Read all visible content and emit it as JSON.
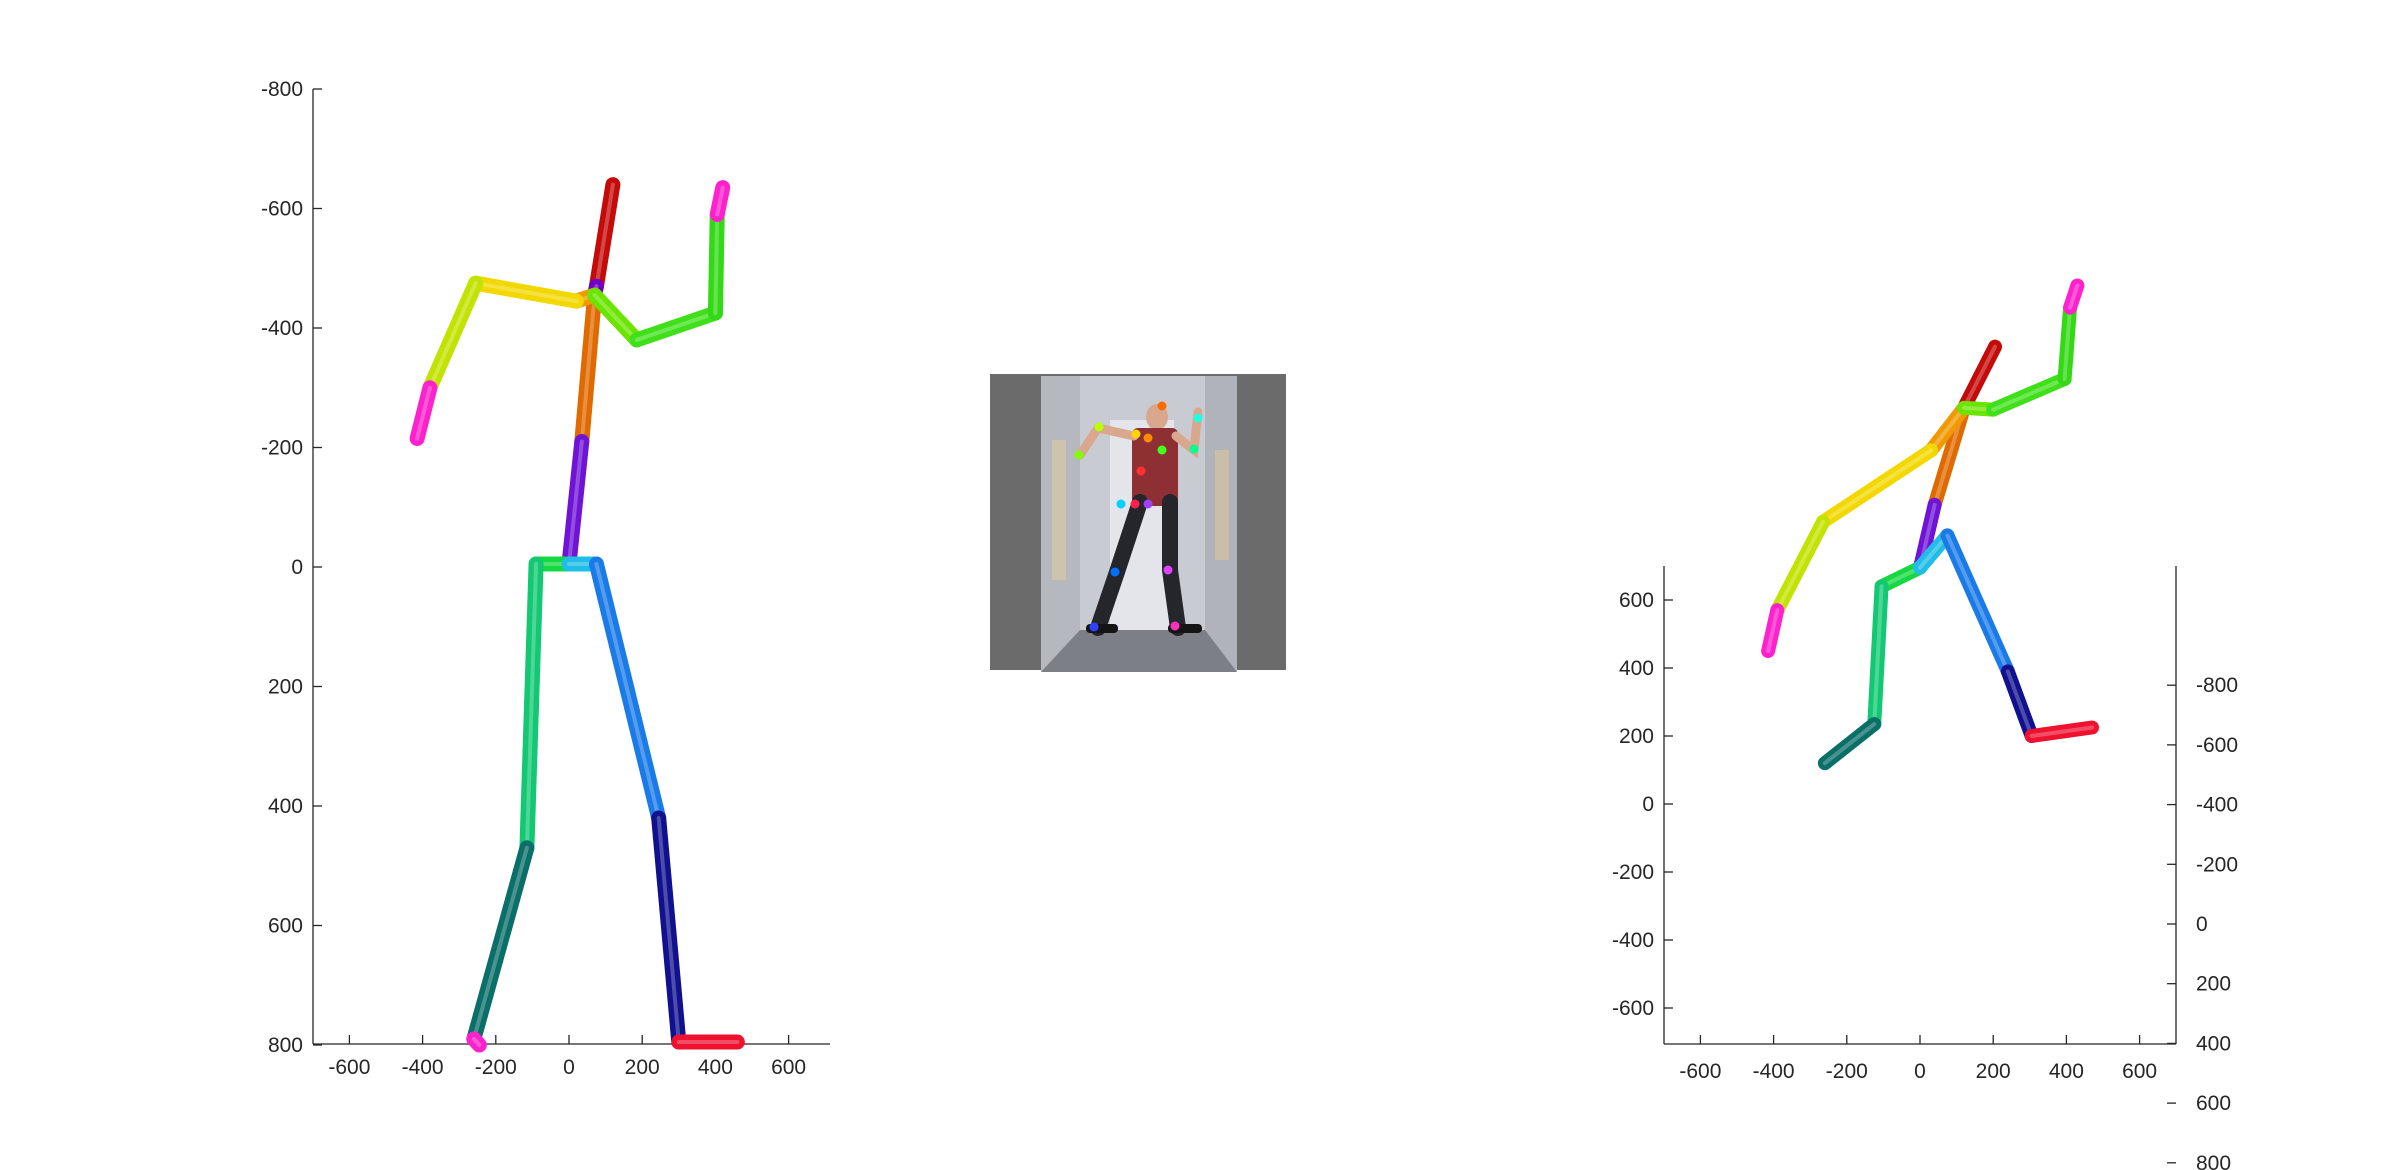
{
  "figure": {
    "description_free": true,
    "panels": [
      "front-view-skeleton",
      "input-photo",
      "3d-view-skeleton"
    ]
  },
  "chart_data": [
    {
      "type": "diagram",
      "panel": "front-view",
      "xlim": [
        -700,
        700
      ],
      "ylim": [
        -800,
        800
      ],
      "y_reversed": true,
      "x_ticks": [
        -600,
        -400,
        -200,
        0,
        200,
        400,
        600
      ],
      "y_ticks": [
        -800,
        -600,
        -400,
        -200,
        0,
        200,
        400,
        600,
        800
      ],
      "bones": [
        {
          "name": "neck-head",
          "color": "#c50a0a",
          "from": [
            120,
            -640
          ],
          "to": [
            75,
            -470
          ]
        },
        {
          "name": "neck-joint",
          "color": "#7000c8",
          "from": [
            75,
            -470
          ],
          "to": [
            70,
            -455
          ]
        },
        {
          "name": "upper-spine",
          "color": "#e06a00",
          "from": [
            70,
            -455
          ],
          "to": [
            35,
            -210
          ]
        },
        {
          "name": "lower-spine",
          "color": "#6f13d6",
          "from": [
            35,
            -210
          ],
          "to": [
            0,
            -5
          ]
        },
        {
          "name": "left-clavicle",
          "color": "#f09a00",
          "from": [
            70,
            -455
          ],
          "to": [
            20,
            -445
          ]
        },
        {
          "name": "left-upper-arm",
          "color": "#f2d800",
          "from": [
            20,
            -445
          ],
          "to": [
            -255,
            -475
          ]
        },
        {
          "name": "left-forearm",
          "color": "#c2e200",
          "from": [
            -255,
            -475
          ],
          "to": [
            -380,
            -300
          ]
        },
        {
          "name": "left-hand",
          "color": "#ff22cc",
          "from": [
            -380,
            -300
          ],
          "to": [
            -415,
            -215
          ]
        },
        {
          "name": "right-clavicle",
          "color": "#6be500",
          "from": [
            70,
            -455
          ],
          "to": [
            185,
            -380
          ]
        },
        {
          "name": "right-upper-arm",
          "color": "#3fe01a",
          "from": [
            185,
            -380
          ],
          "to": [
            400,
            -425
          ]
        },
        {
          "name": "right-forearm",
          "color": "#33d816",
          "from": [
            400,
            -425
          ],
          "to": [
            405,
            -590
          ]
        },
        {
          "name": "right-hand",
          "color": "#ff22cc",
          "from": [
            405,
            -590
          ],
          "to": [
            420,
            -635
          ]
        },
        {
          "name": "left-hip",
          "color": "#16d840",
          "from": [
            0,
            -5
          ],
          "to": [
            -90,
            -5
          ]
        },
        {
          "name": "left-thigh",
          "color": "#12c872",
          "from": [
            -90,
            -5
          ],
          "to": [
            -115,
            470
          ]
        },
        {
          "name": "left-shin",
          "color": "#0b6f69",
          "from": [
            -115,
            470
          ],
          "to": [
            -260,
            790
          ]
        },
        {
          "name": "left-foot",
          "color": "#ff22cc",
          "from": [
            -260,
            790
          ],
          "to": [
            -245,
            800
          ]
        },
        {
          "name": "right-hip",
          "color": "#1fbde8",
          "from": [
            0,
            -5
          ],
          "to": [
            75,
            -5
          ]
        },
        {
          "name": "right-thigh",
          "color": "#1a7be8",
          "from": [
            75,
            -5
          ],
          "to": [
            245,
            420
          ]
        },
        {
          "name": "right-shin",
          "color": "#11118f",
          "from": [
            245,
            420
          ],
          "to": [
            300,
            795
          ]
        },
        {
          "name": "right-foot",
          "color": "#ee1230",
          "from": [
            300,
            795
          ],
          "to": [
            460,
            795
          ]
        }
      ]
    },
    {
      "type": "diagram",
      "panel": "3d-view",
      "xlim": [
        -700,
        700
      ],
      "ylim_left": [
        -700,
        700
      ],
      "ylim_right": [
        -800,
        800
      ],
      "x_ticks": [
        -600,
        -400,
        -200,
        0,
        200,
        400,
        600
      ],
      "y_ticks_left": [
        -600,
        -400,
        -200,
        0,
        200,
        400,
        600
      ],
      "y_ticks_right": [
        -800,
        -600,
        -400,
        -200,
        0,
        200,
        400,
        600,
        800
      ],
      "bones": [
        {
          "name": "neck-head",
          "color": "#c50a0a",
          "from": [
            205,
            1345
          ],
          "to": [
            120,
            1165
          ]
        },
        {
          "name": "upper-spine",
          "color": "#e06a00",
          "from": [
            120,
            1165
          ],
          "to": [
            40,
            880
          ]
        },
        {
          "name": "lower-spine",
          "color": "#6f13d6",
          "from": [
            40,
            880
          ],
          "to": [
            0,
            695
          ]
        },
        {
          "name": "left-clavicle",
          "color": "#f09a00",
          "from": [
            120,
            1165
          ],
          "to": [
            30,
            1040
          ]
        },
        {
          "name": "left-upper-arm",
          "color": "#f2d800",
          "from": [
            30,
            1040
          ],
          "to": [
            -265,
            830
          ]
        },
        {
          "name": "left-forearm",
          "color": "#c2e200",
          "from": [
            -265,
            830
          ],
          "to": [
            -390,
            570
          ]
        },
        {
          "name": "left-hand",
          "color": "#ff22cc",
          "from": [
            -390,
            570
          ],
          "to": [
            -415,
            450
          ]
        },
        {
          "name": "right-clavicle",
          "color": "#6be500",
          "from": [
            120,
            1165
          ],
          "to": [
            200,
            1160
          ]
        },
        {
          "name": "right-upper-arm",
          "color": "#3fe01a",
          "from": [
            200,
            1160
          ],
          "to": [
            395,
            1250
          ]
        },
        {
          "name": "right-forearm",
          "color": "#33d816",
          "from": [
            395,
            1250
          ],
          "to": [
            410,
            1460
          ]
        },
        {
          "name": "right-hand",
          "color": "#ff22cc",
          "from": [
            410,
            1460
          ],
          "to": [
            430,
            1525
          ]
        },
        {
          "name": "left-hip",
          "color": "#16d840",
          "from": [
            0,
            695
          ],
          "to": [
            -105,
            640
          ]
        },
        {
          "name": "left-thigh",
          "color": "#12c872",
          "from": [
            -105,
            640
          ],
          "to": [
            -125,
            235
          ]
        },
        {
          "name": "left-shin",
          "color": "#0b6f69",
          "from": [
            -125,
            235
          ],
          "to": [
            -260,
            120
          ]
        },
        {
          "name": "right-hip",
          "color": "#1fbde8",
          "from": [
            0,
            695
          ],
          "to": [
            75,
            790
          ]
        },
        {
          "name": "right-thigh",
          "color": "#1a7be8",
          "from": [
            75,
            790
          ],
          "to": [
            240,
            390
          ]
        },
        {
          "name": "right-shin",
          "color": "#11118f",
          "from": [
            240,
            390
          ],
          "to": [
            305,
            200
          ]
        },
        {
          "name": "right-foot",
          "color": "#ee1230",
          "from": [
            305,
            200
          ],
          "to": [
            470,
            225
          ]
        }
      ]
    }
  ],
  "photo": {
    "wall_color": "#c9cbd2",
    "floor_color": "#7d7f86",
    "shirt_color": "#8e2f34",
    "pants_color": "#24262c",
    "skin_color": "#d9a78e",
    "keypoints": [
      {
        "name": "head",
        "color": "#ff6a00"
      },
      {
        "name": "right-shoulder",
        "color": "#ffd400"
      },
      {
        "name": "neck",
        "color": "#ff8c00"
      },
      {
        "name": "left-shoulder",
        "color": "#40ff20"
      },
      {
        "name": "right-elbow",
        "color": "#b8ff00"
      },
      {
        "name": "right-wrist",
        "color": "#80ff00"
      },
      {
        "name": "left-elbow",
        "color": "#00ff90"
      },
      {
        "name": "left-wrist",
        "color": "#20ffe0"
      },
      {
        "name": "chest",
        "color": "#ff3030"
      },
      {
        "name": "right-hip",
        "color": "#00d0ff"
      },
      {
        "name": "pelvis",
        "color": "#ff2050"
      },
      {
        "name": "left-hip",
        "color": "#a040ff"
      },
      {
        "name": "right-knee",
        "color": "#0070ff"
      },
      {
        "name": "left-knee",
        "color": "#e040ff"
      },
      {
        "name": "right-ankle",
        "color": "#3040ff"
      },
      {
        "name": "left-ankle",
        "color": "#ff30c0"
      }
    ]
  }
}
